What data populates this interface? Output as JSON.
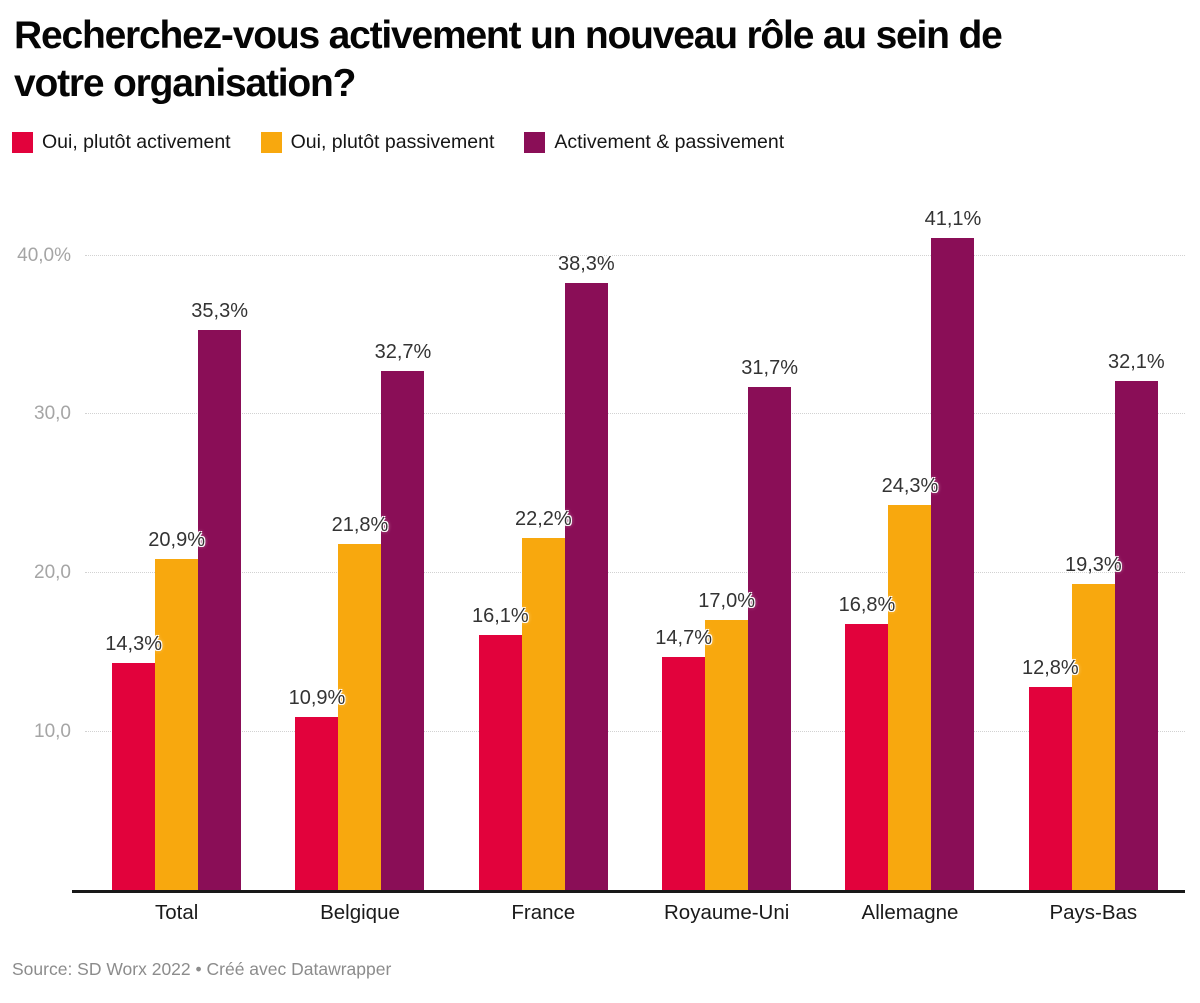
{
  "title": "Recherchez-vous activement un nouveau rôle au sein de votre organisation?",
  "footer": "Source: SD Worx 2022 • Créé avec Datawrapper",
  "colors": {
    "series_active": "#e2023c",
    "series_passive": "#f8a80e",
    "series_both": "#8a0e57",
    "axis": "#181818",
    "grid": "#d2d2d2",
    "tick_text": "#a5a5a5",
    "footer_text": "#8c8c8c"
  },
  "chart_data": {
    "type": "bar",
    "title": "Recherchez-vous activement un nouveau rôle au sein de votre organisation?",
    "categories": [
      "Total",
      "Belgique",
      "France",
      "Royaume-Uni",
      "Allemagne",
      "Pays-Bas"
    ],
    "series": [
      {
        "name": "Oui, plutôt activement",
        "color": "#e2023c",
        "values": [
          14.3,
          10.9,
          16.1,
          14.7,
          16.8,
          12.8
        ],
        "labels": [
          "14,3%",
          "10,9%",
          "16,1%",
          "14,7%",
          "16,8%",
          "12,8%"
        ]
      },
      {
        "name": "Oui, plutôt passivement",
        "color": "#f8a80e",
        "values": [
          20.9,
          21.8,
          22.2,
          17.0,
          24.3,
          19.3
        ],
        "labels": [
          "20,9%",
          "21,8%",
          "22,2%",
          "17,0%",
          "24,3%",
          "19,3%"
        ]
      },
      {
        "name": "Activement & passivement",
        "color": "#8a0e57",
        "values": [
          35.3,
          32.7,
          38.3,
          31.7,
          41.1,
          32.1
        ],
        "labels": [
          "35,3%",
          "32,7%",
          "38,3%",
          "31,7%",
          "41,1%",
          "32,1%"
        ]
      }
    ],
    "yticks": [
      {
        "v": 10,
        "label": "10,0"
      },
      {
        "v": 20,
        "label": "20,0"
      },
      {
        "v": 30,
        "label": "30,0"
      },
      {
        "v": 40,
        "label": "40,0%"
      }
    ],
    "ylim": [
      0,
      44
    ],
    "xlabel": "",
    "ylabel": "",
    "grid": "horizontal-dotted",
    "legend_position": "top",
    "value_labels": "above-bars",
    "source": "SD Worx 2022",
    "tool": "Datawrapper"
  }
}
